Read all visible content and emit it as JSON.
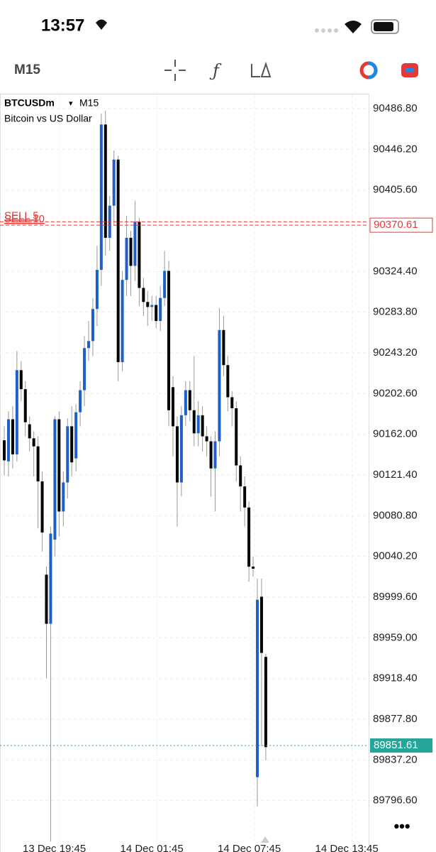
{
  "status_bar": {
    "time": "13:57"
  },
  "toolbar": {
    "timeframe": "M15"
  },
  "chart_data": {
    "type": "candlestick",
    "symbol": "BTCUSDm",
    "timeframe": "M15",
    "description": "Bitcoin vs US Dollar",
    "up_color": "#1f5fc8",
    "down_color": "#000000",
    "ylim": [
      89756,
      90501
    ],
    "yticks": [
      {
        "value": 90486.8,
        "label": "90486.80"
      },
      {
        "value": 90446.2,
        "label": "90446.20"
      },
      {
        "value": 90405.6,
        "label": "90405.60"
      },
      {
        "value": 90324.4,
        "label": "90324.40"
      },
      {
        "value": 90283.8,
        "label": "90283.80"
      },
      {
        "value": 90243.2,
        "label": "90243.20"
      },
      {
        "value": 90202.6,
        "label": "90202.60"
      },
      {
        "value": 90162,
        "label": "90162.00"
      },
      {
        "value": 90121.4,
        "label": "90121.40"
      },
      {
        "value": 90080.8,
        "label": "90080.80"
      },
      {
        "value": 90040.2,
        "label": "90040.20"
      },
      {
        "value": 89999.6,
        "label": "89999.60"
      },
      {
        "value": 89959,
        "label": "89959.00"
      },
      {
        "value": 89918.4,
        "label": "89918.40"
      },
      {
        "value": 89877.8,
        "label": "89877.80"
      },
      {
        "value": 89837.2,
        "label": "89837.20"
      },
      {
        "value": 89796.6,
        "label": "89796.60"
      }
    ],
    "xtick_labels": [
      "13 Dec 19:45",
      "14 Dec 01:45",
      "14 Dec 07:45",
      "14 Dec 13:45"
    ],
    "current_price": 89851.61,
    "orders": [
      {
        "label": "SELL 5",
        "price": 90374
      },
      {
        "label": "SELL 10",
        "price": 90370.61
      }
    ],
    "open": [
      90156,
      90135,
      90177,
      90142,
      90226,
      90207,
      90172,
      90158,
      90150,
      90115,
      90022,
      89973,
      90057,
      90177,
      90085,
      90114,
      90170,
      90138,
      90184,
      90206,
      90248,
      90255,
      90287,
      90326,
      90471,
      90358,
      90390,
      90436,
      90234,
      90316,
      90358,
      90330,
      90374,
      90308,
      90294,
      90289,
      90291,
      90275,
      90298,
      90325,
      90209,
      90170,
      90114,
      90181,
      90206,
      90186,
      90163,
      90181,
      90160,
      90155,
      90128,
      90155,
      90266,
      90231,
      90199,
      90188,
      90131,
      90110,
      90089,
      90030,
      89820,
      90000,
      89940
    ],
    "high": [
      90170,
      90185,
      90190,
      90245,
      90235,
      90215,
      90180,
      90165,
      90160,
      90125,
      90030,
      90070,
      90180,
      90185,
      90125,
      90178,
      90190,
      90192,
      90215,
      90260,
      90275,
      90298,
      90350,
      90482,
      90485,
      90400,
      90445,
      90440,
      90325,
      90380,
      90365,
      90395,
      90378,
      90318,
      90305,
      90300,
      90300,
      90310,
      90345,
      90335,
      90220,
      90180,
      90190,
      90215,
      90215,
      90240,
      90195,
      90190,
      90170,
      90160,
      90165,
      90288,
      90280,
      90240,
      90205,
      90195,
      90140,
      90120,
      90095,
      90040,
      90018,
      90018,
      89943
    ],
    "low": [
      90121,
      90120,
      90128,
      90135,
      90195,
      90160,
      90145,
      90120,
      90068,
      90045,
      89919,
      89756,
      90040,
      90060,
      90070,
      90098,
      90120,
      90125,
      90170,
      90190,
      90235,
      90240,
      90270,
      90310,
      90340,
      90345,
      90370,
      90215,
      90225,
      90300,
      90300,
      90315,
      90290,
      90280,
      90270,
      90275,
      90268,
      90265,
      90290,
      90170,
      90140,
      90070,
      90100,
      90170,
      90175,
      90150,
      90150,
      90145,
      90140,
      90100,
      90085,
      90140,
      90220,
      90185,
      90170,
      90115,
      90085,
      90070,
      90015,
      90020,
      89791,
      89851,
      89837
    ],
    "close": [
      90136,
      90177,
      90142,
      90226,
      90207,
      90174,
      90158,
      90150,
      90115,
      90064,
      89973,
      90063,
      90177,
      90085,
      90114,
      90170,
      90134,
      90184,
      90206,
      90248,
      90255,
      90287,
      90326,
      90471,
      90358,
      90390,
      90436,
      90234,
      90316,
      90358,
      90330,
      90374,
      90308,
      90294,
      90289,
      90291,
      90275,
      90298,
      90325,
      90186,
      90170,
      90114,
      90181,
      90206,
      90186,
      90163,
      90181,
      90160,
      90155,
      90128,
      90155,
      90266,
      90231,
      90199,
      90188,
      90131,
      90110,
      90089,
      90030,
      90028,
      89997,
      89944,
      89850
    ]
  }
}
